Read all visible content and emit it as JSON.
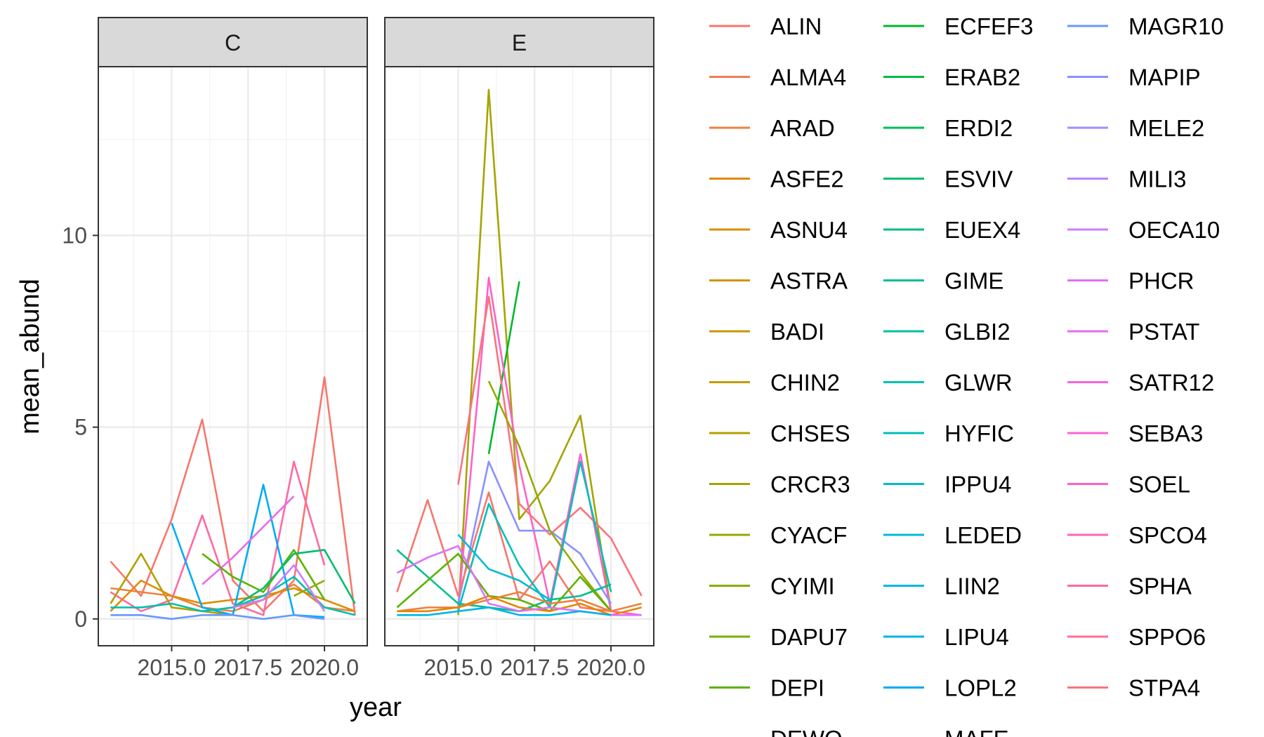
{
  "chart_data": {
    "type": "line",
    "facets": [
      "C",
      "E"
    ],
    "xlabel": "year",
    "ylabel": "mean_abund",
    "x_tick_labels": [
      "2015.0",
      "2017.5",
      "2020.0"
    ],
    "x_ticks": [
      2015,
      2017.5,
      2020
    ],
    "y_tick_labels": [
      "0",
      "5",
      "10"
    ],
    "y_ticks": [
      0,
      5,
      10
    ],
    "xlim": [
      2012.6,
      2021.4
    ],
    "ylim": [
      -0.7,
      14.4
    ],
    "grid": true,
    "legend_position": "right",
    "legend_columns": 3,
    "legend_entries": [
      {
        "name": "ALIN",
        "color": "#F8766D"
      },
      {
        "name": "ALMA4",
        "color": "#F37B59"
      },
      {
        "name": "ARAD",
        "color": "#ED8141"
      },
      {
        "name": "ASFE2",
        "color": "#E58700"
      },
      {
        "name": "ASNU4",
        "color": "#DD8D00"
      },
      {
        "name": "ASTRA",
        "color": "#D49200"
      },
      {
        "name": "BADI",
        "color": "#CA9700"
      },
      {
        "name": "CHIN2",
        "color": "#BF9C00"
      },
      {
        "name": "CHSES",
        "color": "#B3A000"
      },
      {
        "name": "CRCR3",
        "color": "#A5A400"
      },
      {
        "name": "CYACF",
        "color": "#96A900"
      },
      {
        "name": "CYIMI",
        "color": "#85AD00"
      },
      {
        "name": "DAPU7",
        "color": "#72B000"
      },
      {
        "name": "DEPI",
        "color": "#5BB300"
      },
      {
        "name": "DEWO",
        "color": "#39B600"
      },
      {
        "name": "ECFEF3",
        "color": "#00B82B"
      },
      {
        "name": "ERAB2",
        "color": "#00BA44"
      },
      {
        "name": "ERDI2",
        "color": "#00BC59"
      },
      {
        "name": "ESVIV",
        "color": "#00BE6C"
      },
      {
        "name": "EUEX4",
        "color": "#00BF7D"
      },
      {
        "name": "GIME",
        "color": "#00C08E"
      },
      {
        "name": "GLBI2",
        "color": "#00C19E"
      },
      {
        "name": "GLWR",
        "color": "#00C0AD"
      },
      {
        "name": "HYFIC",
        "color": "#00BFBC"
      },
      {
        "name": "IPPU4",
        "color": "#00BDCA"
      },
      {
        "name": "LEDED",
        "color": "#00BAD7"
      },
      {
        "name": "LIIN2",
        "color": "#00B6E3"
      },
      {
        "name": "LIPU4",
        "color": "#00B1EE"
      },
      {
        "name": "LOPL2",
        "color": "#00ABF7"
      },
      {
        "name": "MAFE",
        "color": "#35A2FF"
      },
      {
        "name": "MAGR10",
        "color": "#6699FF"
      },
      {
        "name": "MAPIP",
        "color": "#8A91FF"
      },
      {
        "name": "MELE2",
        "color": "#A58AFF"
      },
      {
        "name": "MILI3",
        "color": "#BB83FF"
      },
      {
        "name": "OECA10",
        "color": "#CE7BFF"
      },
      {
        "name": "PHCR",
        "color": "#DF71FA"
      },
      {
        "name": "PSTAT",
        "color": "#EC69EF"
      },
      {
        "name": "SATR12",
        "color": "#F564E3"
      },
      {
        "name": "SEBA3",
        "color": "#FC61D5"
      },
      {
        "name": "SOEL",
        "color": "#FF62C5"
      },
      {
        "name": "SPCO4",
        "color": "#FF65B4"
      },
      {
        "name": "SPHA",
        "color": "#FF69A2"
      },
      {
        "name": "SPPO6",
        "color": "#FE6E90"
      },
      {
        "name": "STPA4",
        "color": "#FB727D"
      }
    ],
    "series": [
      {
        "facet": "C",
        "color": "#F8766D",
        "x": [
          2013,
          2014,
          2015,
          2016,
          2017,
          2018,
          2019,
          2020,
          2021
        ],
        "y": [
          1.5,
          0.6,
          2.6,
          5.2,
          1.0,
          0.2,
          1.0,
          6.3,
          0.1
        ]
      },
      {
        "facet": "C",
        "color": "#FF69A2",
        "x": [
          2013,
          2014,
          2015,
          2016,
          2017,
          2018,
          2019,
          2020
        ],
        "y": [
          0.7,
          0.2,
          0.5,
          2.7,
          0.4,
          0.1,
          4.1,
          1.4
        ]
      },
      {
        "facet": "C",
        "color": "#B3A000",
        "x": [
          2013,
          2014,
          2015,
          2016,
          2017
        ],
        "y": [
          0.4,
          1.7,
          0.3,
          0.2,
          0.1
        ]
      },
      {
        "facet": "C",
        "color": "#ED8141",
        "x": [
          2013,
          2014,
          2015,
          2016,
          2017,
          2018,
          2019,
          2020,
          2021
        ],
        "y": [
          0.8,
          0.7,
          0.6,
          0.3,
          0.2,
          0.5,
          0.9,
          0.3,
          0.2
        ]
      },
      {
        "facet": "C",
        "color": "#DD8D00",
        "x": [
          2013,
          2014,
          2015,
          2016,
          2017,
          2018,
          2019,
          2020,
          2021
        ],
        "y": [
          0.2,
          1.0,
          0.6,
          0.4,
          0.5,
          0.6,
          0.8,
          0.5,
          0.2
        ]
      },
      {
        "facet": "C",
        "color": "#00ABF7",
        "x": [
          2015,
          2016,
          2017,
          2018,
          2019,
          2020
        ],
        "y": [
          2.5,
          0.3,
          0.1,
          3.5,
          0.1,
          0.05
        ]
      },
      {
        "facet": "C",
        "color": "#EC69EF",
        "x": [
          2016,
          2017,
          2018,
          2019
        ],
        "y": [
          0.9,
          1.6,
          2.4,
          3.2
        ]
      },
      {
        "facet": "C",
        "color": "#5BB300",
        "x": [
          2016,
          2017,
          2018,
          2019,
          2020
        ],
        "y": [
          1.7,
          1.1,
          0.7,
          1.8,
          0.5
        ]
      },
      {
        "facet": "C",
        "color": "#00BE6C",
        "x": [
          2017,
          2018,
          2019,
          2020,
          2021
        ],
        "y": [
          0.3,
          0.8,
          1.7,
          1.8,
          0.4
        ]
      },
      {
        "facet": "C",
        "color": "#96A900",
        "x": [
          2019,
          2020
        ],
        "y": [
          0.6,
          1.0
        ]
      },
      {
        "facet": "C",
        "color": "#00C0AD",
        "x": [
          2013,
          2014,
          2015,
          2016,
          2017,
          2018,
          2019,
          2020,
          2021
        ],
        "y": [
          0.3,
          0.3,
          0.4,
          0.2,
          0.3,
          0.6,
          1.1,
          0.3,
          0.1
        ]
      },
      {
        "facet": "C",
        "color": "#6699FF",
        "x": [
          2013,
          2014,
          2015,
          2016,
          2017,
          2018,
          2019,
          2020
        ],
        "y": [
          0.1,
          0.1,
          0.0,
          0.1,
          0.1,
          0.0,
          0.1,
          0.0
        ]
      },
      {
        "facet": "C",
        "color": "#CE7BFF",
        "x": [
          2017,
          2018,
          2019,
          2020
        ],
        "y": [
          0.3,
          0.5,
          1.4,
          0.2
        ]
      },
      {
        "facet": "E",
        "color": "#A5A400",
        "x": [
          2015,
          2016,
          2017,
          2018,
          2019,
          2020
        ],
        "y": [
          0.1,
          13.8,
          2.6,
          3.6,
          5.3,
          0.2
        ]
      },
      {
        "facet": "E",
        "color": "#00B82B",
        "x": [
          2016,
          2017
        ],
        "y": [
          4.3,
          8.8
        ]
      },
      {
        "facet": "E",
        "color": "#FF62C5",
        "x": [
          2015,
          2016,
          2017,
          2018,
          2019,
          2020,
          2021
        ],
        "y": [
          0.3,
          8.9,
          4.0,
          0.4,
          4.3,
          0.2,
          0.1
        ]
      },
      {
        "facet": "E",
        "color": "#FB727D",
        "x": [
          2015,
          2016,
          2017,
          2018,
          2019,
          2020,
          2021
        ],
        "y": [
          3.5,
          8.4,
          3.0,
          2.2,
          2.9,
          2.1,
          0.6
        ]
      },
      {
        "facet": "E",
        "color": "#8A91FF",
        "x": [
          2015,
          2016,
          2017,
          2018,
          2019,
          2020
        ],
        "y": [
          0.4,
          4.1,
          2.3,
          2.3,
          1.7,
          0.4
        ]
      },
      {
        "facet": "E",
        "color": "#96A900",
        "x": [
          2016,
          2017,
          2018,
          2019,
          2020
        ],
        "y": [
          6.2,
          4.5,
          2.3,
          1.2,
          0.2
        ]
      },
      {
        "facet": "E",
        "color": "#F8766D",
        "x": [
          2013,
          2014,
          2015,
          2016,
          2017,
          2018,
          2019,
          2020
        ],
        "y": [
          0.7,
          3.1,
          0.6,
          3.3,
          0.5,
          1.5,
          0.3,
          0.2
        ]
      },
      {
        "facet": "E",
        "color": "#00BFBC",
        "x": [
          2015,
          2016,
          2017,
          2018,
          2019,
          2020
        ],
        "y": [
          0.2,
          3.0,
          1.4,
          0.3,
          4.1,
          0.7
        ]
      },
      {
        "facet": "E",
        "color": "#00C08E",
        "x": [
          2013,
          2014,
          2015,
          2016,
          2017,
          2018,
          2019,
          2020
        ],
        "y": [
          1.8,
          1.1,
          0.4,
          0.3,
          0.2,
          0.5,
          0.6,
          0.9
        ]
      },
      {
        "facet": "E",
        "color": "#5BB300",
        "x": [
          2013,
          2014,
          2015,
          2016,
          2017,
          2018,
          2019,
          2020
        ],
        "y": [
          0.3,
          1.0,
          1.7,
          0.6,
          0.5,
          0.2,
          1.1,
          0.2
        ]
      },
      {
        "facet": "E",
        "color": "#00BAD7",
        "x": [
          2015,
          2016,
          2017,
          2018
        ],
        "y": [
          2.2,
          1.3,
          1.0,
          0.5
        ]
      },
      {
        "facet": "E",
        "color": "#ED8141",
        "x": [
          2013,
          2014,
          2015,
          2016,
          2017,
          2018,
          2019,
          2020,
          2021
        ],
        "y": [
          0.2,
          0.3,
          0.3,
          0.5,
          0.7,
          0.4,
          0.5,
          0.2,
          0.4
        ]
      },
      {
        "facet": "E",
        "color": "#E58700",
        "x": [
          2013,
          2014,
          2015,
          2016,
          2017,
          2018,
          2019,
          2020,
          2021
        ],
        "y": [
          0.2,
          0.2,
          0.3,
          0.6,
          0.3,
          0.2,
          0.4,
          0.1,
          0.3
        ]
      },
      {
        "facet": "E",
        "color": "#DF71FA",
        "x": [
          2013,
          2014,
          2015,
          2016,
          2017,
          2018,
          2019,
          2020,
          2021
        ],
        "y": [
          1.2,
          1.6,
          1.9,
          0.4,
          0.2,
          0.3,
          0.2,
          0.1,
          0.1
        ]
      },
      {
        "facet": "E",
        "color": "#00B6E3",
        "x": [
          2013,
          2014,
          2015,
          2016,
          2017,
          2018,
          2019,
          2020
        ],
        "y": [
          0.1,
          0.1,
          0.2,
          0.3,
          0.1,
          0.1,
          0.2,
          0.1
        ]
      }
    ]
  }
}
